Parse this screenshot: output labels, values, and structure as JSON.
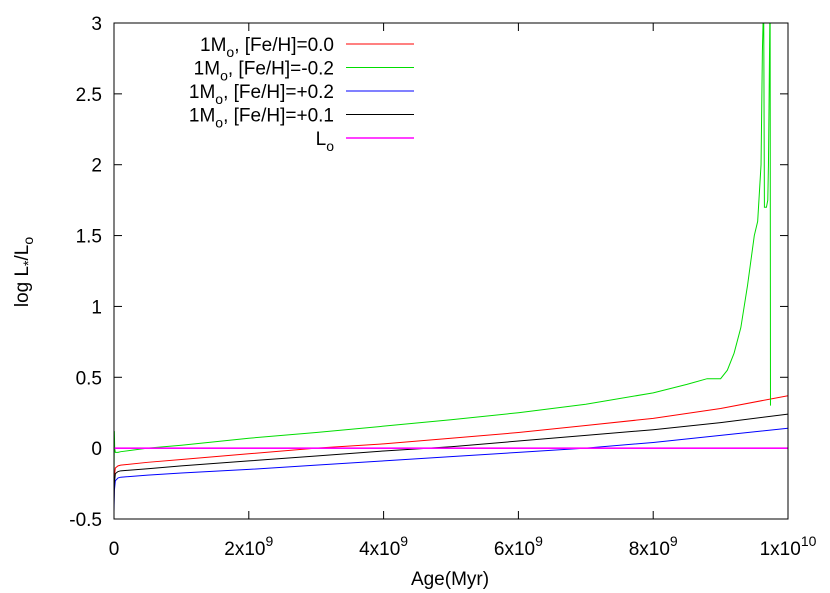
{
  "chart_data": {
    "type": "line",
    "xlabel": "Age(Myr)",
    "ylabel": "log L*/Lo",
    "xlim": [
      0,
      10000000000.0
    ],
    "ylim": [
      -0.5,
      3
    ],
    "x_ticks": [
      {
        "value": 0,
        "label": "0"
      },
      {
        "value": 2000000000.0,
        "label": "2x10",
        "exp": "9"
      },
      {
        "value": 4000000000.0,
        "label": "4x10",
        "exp": "9"
      },
      {
        "value": 6000000000.0,
        "label": "6x10",
        "exp": "9"
      },
      {
        "value": 8000000000.0,
        "label": "8x10",
        "exp": "9"
      },
      {
        "value": 10000000000.0,
        "label": "1x10",
        "exp": "10"
      }
    ],
    "y_ticks": [
      {
        "value": -0.5,
        "label": "-0.5"
      },
      {
        "value": 0,
        "label": "0"
      },
      {
        "value": 0.5,
        "label": "0.5"
      },
      {
        "value": 1,
        "label": "1"
      },
      {
        "value": 1.5,
        "label": "1.5"
      },
      {
        "value": 2,
        "label": "2"
      },
      {
        "value": 2.5,
        "label": "2.5"
      },
      {
        "value": 3,
        "label": "3"
      }
    ],
    "legend_position": "top-left",
    "series": [
      {
        "name": "1Mo, [Fe/H]=0.0",
        "color": "#ff0000",
        "x": [
          0,
          5000000.0,
          20000000.0,
          60000000.0,
          100000000.0,
          500000000.0,
          1000000000.0,
          2000000000.0,
          3000000000.0,
          4000000000.0,
          5000000000.0,
          6000000000.0,
          7000000000.0,
          8000000000.0,
          9000000000.0,
          10000000000.0
        ],
        "y": [
          -0.36,
          -0.2,
          -0.14,
          -0.125,
          -0.12,
          -0.1,
          -0.08,
          -0.04,
          0.0,
          0.03,
          0.07,
          0.11,
          0.16,
          0.21,
          0.28,
          0.37
        ]
      },
      {
        "name": "1Mo, [Fe/H]=-0.2",
        "color": "#00dd00",
        "x": [
          0,
          5000000.0,
          10000000.0,
          20000000.0,
          30000000.0,
          60000000.0,
          100000000.0,
          500000000.0,
          1000000000.0,
          2000000000.0,
          3000000000.0,
          4000000000.0,
          5000000000.0,
          6000000000.0,
          7000000000.0,
          8000000000.0,
          8500000000.0,
          8800000000.0,
          9000000000.0,
          9100000000.0,
          9200000000.0,
          9300000000.0,
          9400000000.0,
          9500000000.0,
          9550000000.0,
          9600000000.0,
          9620000000.0,
          9630000000.0,
          9640000000.0,
          9650000000.0,
          9680000000.0,
          9700000000.0,
          9710000000.0,
          9720000000.0,
          9730000000.0,
          9735000000.0,
          9740000000.0,
          9740000000.0
        ],
        "y": [
          -0.2,
          0.12,
          0.0,
          -0.03,
          -0.03,
          -0.03,
          -0.025,
          0.0,
          0.02,
          0.07,
          0.11,
          0.155,
          0.2,
          0.25,
          0.31,
          0.39,
          0.45,
          0.49,
          0.49,
          0.55,
          0.67,
          0.85,
          1.15,
          1.5,
          1.6,
          2.0,
          2.8,
          3.0,
          3.0,
          1.7,
          1.7,
          1.75,
          2.0,
          2.5,
          3.0,
          3.0,
          0.3,
          0.3
        ]
      },
      {
        "name": "1Mo, [Fe/H]=+0.2",
        "color": "#0000ff",
        "x": [
          0,
          5000000.0,
          20000000.0,
          60000000.0,
          100000000.0,
          500000000.0,
          1000000000.0,
          2000000000.0,
          3000000000.0,
          4000000000.0,
          5000000000.0,
          6000000000.0,
          7000000000.0,
          8000000000.0,
          9000000000.0,
          10000000000.0
        ],
        "y": [
          -0.45,
          -0.3,
          -0.23,
          -0.21,
          -0.205,
          -0.19,
          -0.175,
          -0.15,
          -0.12,
          -0.09,
          -0.06,
          -0.03,
          0.0,
          0.04,
          0.09,
          0.14
        ]
      },
      {
        "name": "1Mo, [Fe/H]=+0.1",
        "color": "#000000",
        "x": [
          0,
          5000000.0,
          20000000.0,
          60000000.0,
          100000000.0,
          500000000.0,
          1000000000.0,
          2000000000.0,
          3000000000.0,
          4000000000.0,
          5000000000.0,
          6000000000.0,
          7000000000.0,
          8000000000.0,
          9000000000.0,
          10000000000.0
        ],
        "y": [
          -0.4,
          -0.25,
          -0.18,
          -0.165,
          -0.16,
          -0.145,
          -0.125,
          -0.09,
          -0.055,
          -0.02,
          0.01,
          0.05,
          0.09,
          0.13,
          0.18,
          0.24
        ]
      },
      {
        "name": "Lo",
        "color": "#ff00ff",
        "x": [
          0,
          10000000000.0
        ],
        "y": [
          0,
          0
        ]
      }
    ]
  }
}
